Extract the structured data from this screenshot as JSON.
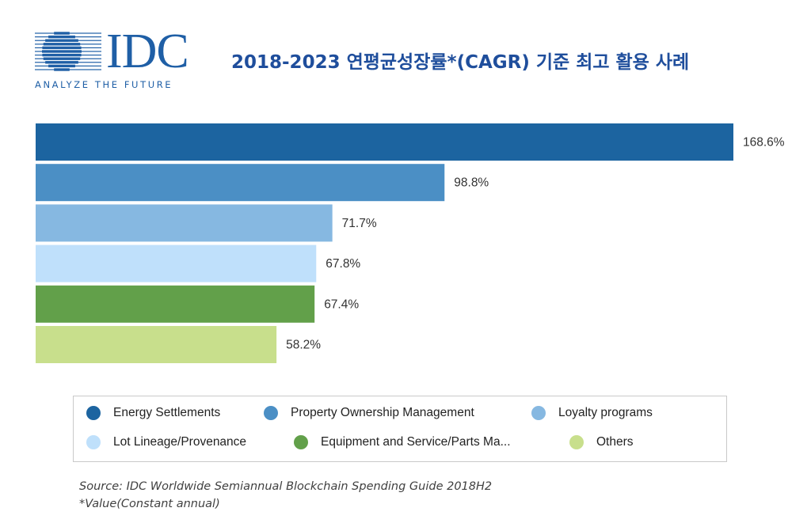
{
  "logo": {
    "wordmark": "IDC",
    "tagline": "ANALYZE THE FUTURE",
    "color": "#1f5fa6"
  },
  "title": "2018-2023 연평균성장률*(CAGR) 기준 최고 활용 사례",
  "title_color": "#1f4e9c",
  "chart_data": {
    "type": "bar",
    "orientation": "horizontal",
    "title": "2018-2023 연평균성장률*(CAGR) 기준 최고 활용 사례",
    "xlabel": "",
    "ylabel": "",
    "value_suffix": "%",
    "xlim": [
      0,
      168.6
    ],
    "grid": false,
    "legend_position": "bottom",
    "series": [
      {
        "name": "Energy Settlements",
        "value": 168.6,
        "label": "168.6%",
        "color": "#1c64a0"
      },
      {
        "name": "Property Ownership Management",
        "value": 98.8,
        "label": "98.8%",
        "color": "#4b8fc5"
      },
      {
        "name": "Loyalty programs",
        "value": 71.7,
        "label": "71.7%",
        "color": "#86b8e1"
      },
      {
        "name": "Lot Lineage/Provenance",
        "value": 67.8,
        "label": "67.8%",
        "color": "#bfe0fb"
      },
      {
        "name": "Equipment and Service/Parts Ma...",
        "value": 67.4,
        "label": "67.4%",
        "color": "#62a04a"
      },
      {
        "name": "Others",
        "value": 58.2,
        "label": "58.2%",
        "color": "#c8df8c"
      }
    ]
  },
  "legend": [
    {
      "label": "Energy Settlements",
      "color": "#1c64a0"
    },
    {
      "label": "Property Ownership Management",
      "color": "#4b8fc5"
    },
    {
      "label": "Loyalty programs",
      "color": "#86b8e1"
    },
    {
      "label": "Lot Lineage/Provenance",
      "color": "#bfe0fb"
    },
    {
      "label": "Equipment and Service/Parts Ma...",
      "color": "#62a04a"
    },
    {
      "label": "Others",
      "color": "#c8df8c"
    }
  ],
  "source": {
    "line1": "Source: IDC Worldwide Semiannual Blockchain Spending Guide 2018H2",
    "line2": "*Value(Constant annual)"
  }
}
